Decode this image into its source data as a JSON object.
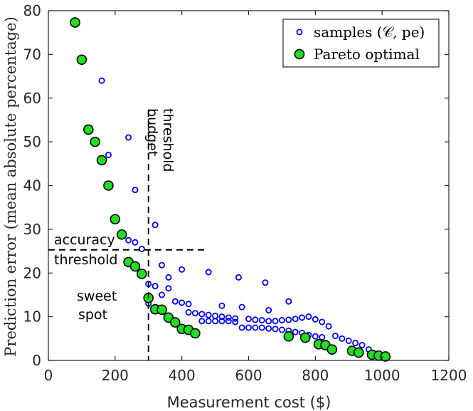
{
  "chart_data": {
    "type": "scatter",
    "xlabel": "Measurement cost ($)",
    "ylabel": "Prediction error (mean absolute percentage)",
    "xlim": [
      0,
      1200
    ],
    "ylim": [
      0,
      80
    ],
    "xticks": [
      0,
      200,
      400,
      600,
      800,
      1000,
      1200
    ],
    "yticks": [
      0,
      10,
      20,
      30,
      40,
      50,
      60,
      70,
      80
    ],
    "grid": false,
    "legend_position": "top-right",
    "legend": {
      "samples": "samples (𝒞, pe)",
      "pareto": "Pareto optimal"
    },
    "colors": {
      "samples": "#0000ee",
      "pareto_fill": "#22dd22",
      "pareto_edge": "#000000",
      "axis": "#262626"
    },
    "annotations": {
      "budget_threshold": {
        "x": 300,
        "lines": [
          "budget",
          "threshold"
        ]
      },
      "accuracy_threshold": {
        "y": 25.3,
        "lines": [
          "accuracy",
          "threshold"
        ]
      },
      "sweet_spot": {
        "lines": [
          "sweet",
          "spot"
        ]
      }
    },
    "series": [
      {
        "name": "samples",
        "points": [
          [
            160,
            64
          ],
          [
            240,
            51
          ],
          [
            180,
            47
          ],
          [
            260,
            39
          ],
          [
            320,
            31
          ],
          [
            240,
            27.5
          ],
          [
            260,
            27
          ],
          [
            280,
            25.5
          ],
          [
            340,
            21.8
          ],
          [
            400,
            20.8
          ],
          [
            480,
            20.2
          ],
          [
            570,
            19
          ],
          [
            650,
            17.8
          ],
          [
            360,
            19
          ],
          [
            360,
            16.5
          ],
          [
            300,
            17.5
          ],
          [
            320,
            17
          ],
          [
            340,
            15
          ],
          [
            300,
            13
          ],
          [
            380,
            13.5
          ],
          [
            400,
            13.2
          ],
          [
            420,
            12.9
          ],
          [
            520,
            12.5
          ],
          [
            580,
            12.2
          ],
          [
            660,
            11.5
          ],
          [
            720,
            13.5
          ],
          [
            420,
            11
          ],
          [
            440,
            10.8
          ],
          [
            460,
            10.6
          ],
          [
            480,
            10.4
          ],
          [
            500,
            10.2
          ],
          [
            520,
            10
          ],
          [
            540,
            9.8
          ],
          [
            560,
            9.6
          ],
          [
            600,
            9.5
          ],
          [
            620,
            9.3
          ],
          [
            640,
            9.2
          ],
          [
            660,
            9
          ],
          [
            680,
            9
          ],
          [
            700,
            9.2
          ],
          [
            720,
            9.3
          ],
          [
            740,
            9.5
          ],
          [
            760,
            9.8
          ],
          [
            780,
            10
          ],
          [
            800,
            9.4
          ],
          [
            820,
            8.8
          ],
          [
            840,
            7.8
          ],
          [
            460,
            9
          ],
          [
            480,
            9
          ],
          [
            500,
            9
          ],
          [
            520,
            9
          ],
          [
            540,
            9
          ],
          [
            560,
            8.8
          ],
          [
            580,
            7.5
          ],
          [
            600,
            7.5
          ],
          [
            620,
            7.5
          ],
          [
            640,
            7.5
          ],
          [
            660,
            7.3
          ],
          [
            680,
            7.2
          ],
          [
            700,
            7
          ],
          [
            720,
            6.8
          ],
          [
            740,
            6.5
          ],
          [
            760,
            6.3
          ],
          [
            780,
            5.8
          ],
          [
            800,
            5.5
          ],
          [
            820,
            5.3
          ],
          [
            860,
            5.6
          ],
          [
            880,
            5
          ],
          [
            900,
            4.5
          ],
          [
            920,
            4
          ],
          [
            940,
            3.5
          ],
          [
            960,
            2.5
          ],
          [
            980,
            1.5
          ]
        ]
      },
      {
        "name": "pareto",
        "points": [
          [
            80,
            77.3
          ],
          [
            100,
            68.8
          ],
          [
            120,
            52.8
          ],
          [
            140,
            50
          ],
          [
            160,
            45.8
          ],
          [
            180,
            40
          ],
          [
            200,
            32.3
          ],
          [
            220,
            28.8
          ],
          [
            240,
            22.5
          ],
          [
            260,
            21.5
          ],
          [
            280,
            19.8
          ],
          [
            300,
            14.3
          ],
          [
            320,
            11.7
          ],
          [
            340,
            11.6
          ],
          [
            360,
            9.8
          ],
          [
            380,
            8.7
          ],
          [
            400,
            7.2
          ],
          [
            420,
            7
          ],
          [
            440,
            6.2
          ],
          [
            720,
            5.5
          ],
          [
            770,
            5.2
          ],
          [
            810,
            3.7
          ],
          [
            830,
            3.5
          ],
          [
            850,
            2.5
          ],
          [
            910,
            2.2
          ],
          [
            930,
            1.8
          ],
          [
            970,
            1.3
          ],
          [
            990,
            1.1
          ],
          [
            1010,
            0.9
          ]
        ]
      }
    ]
  }
}
